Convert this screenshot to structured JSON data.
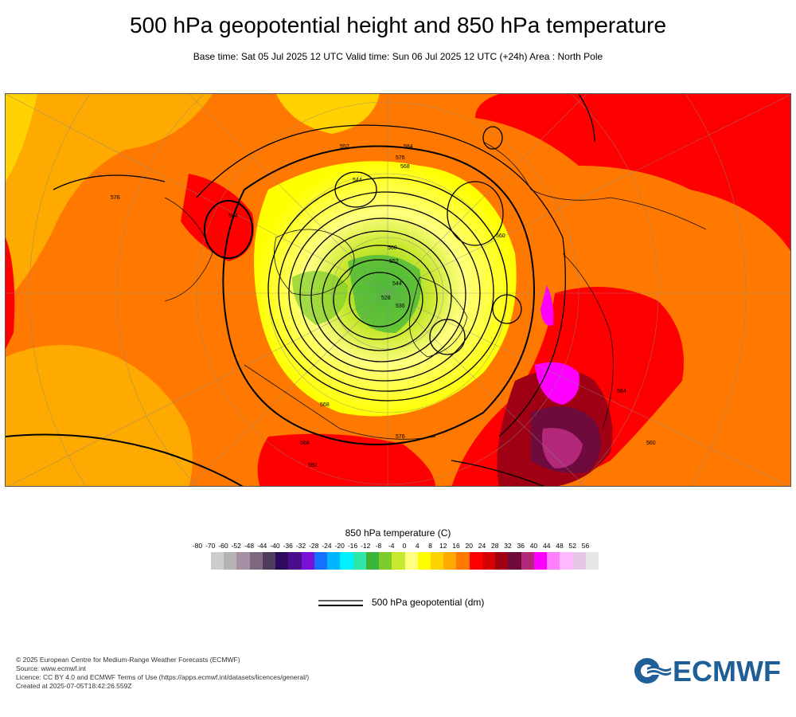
{
  "header": {
    "title": "500 hPa geopotential height and 850 hPa temperature",
    "subtitle": "Base time: Sat 05 Jul 2025 12 UTC Valid time: Sun 06 Jul 2025 12 UTC (+24h) Area : North Pole"
  },
  "map": {
    "contour_labels": [
      "584",
      "576",
      "568",
      "560",
      "552",
      "544",
      "536",
      "528",
      "544",
      "552",
      "560",
      "568",
      "576",
      "584",
      "592",
      "584",
      "576",
      "568",
      "560"
    ]
  },
  "colorbar": {
    "title": "850 hPa temperature (C)",
    "ticks": [
      "-80",
      "-70",
      "-60",
      "-52",
      "-48",
      "-44",
      "-40",
      "-36",
      "-32",
      "-28",
      "-24",
      "-20",
      "-16",
      "-12",
      "-8",
      "-4",
      "0",
      "4",
      "8",
      "12",
      "16",
      "20",
      "24",
      "28",
      "32",
      "36",
      "40",
      "44",
      "48",
      "52",
      "56"
    ],
    "colors": [
      "#e6e6e6",
      "#cccccc",
      "#b3b3b3",
      "#a58fa5",
      "#7f6880",
      "#4e3a5a",
      "#2e0a5e",
      "#4b0e8a",
      "#7a10d8",
      "#1570ff",
      "#00b4ff",
      "#00f0ff",
      "#2ee6a8",
      "#3cb43c",
      "#7ccc2c",
      "#c8e82e",
      "#ffff80",
      "#ffff00",
      "#ffd200",
      "#ffaa00",
      "#ff7800",
      "#ff0000",
      "#d70000",
      "#a00014",
      "#6e0a3c",
      "#b4287a",
      "#ff00ff",
      "#ff80ff",
      "#ffbaff",
      "#e6c8e6",
      "#e6e6e6"
    ]
  },
  "legend": {
    "geopotential_label": "500 hPa geopotential (dm)"
  },
  "footer": {
    "line1": "© 2025 European Centre for Medium-Range Weather Forecasts (ECMWF)",
    "line2": "Source: www.ecmwf.int",
    "line3": "Licence: CC BY 4.0 and ECMWF Terms of Use (https://apps.ecmwf.int/datasets/licences/general/)",
    "line4": "Created at 2025-07-05T18:42:26.559Z"
  },
  "logo": {
    "text": "ECMWF",
    "color": "#1f5e96"
  }
}
